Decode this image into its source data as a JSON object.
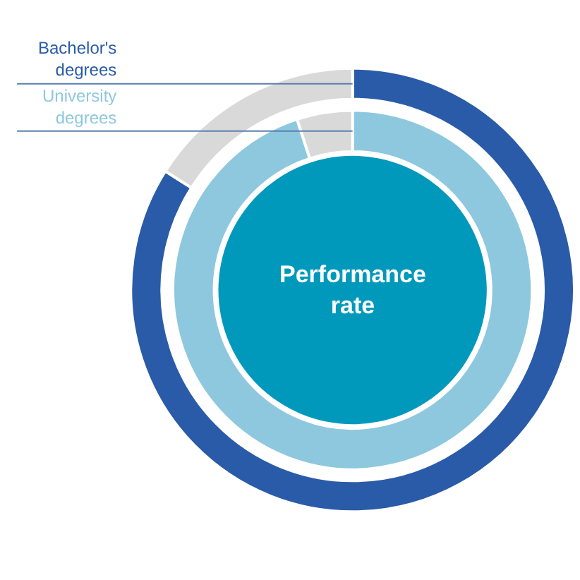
{
  "chart_data": {
    "type": "donut",
    "categories": [
      null,
      null
    ],
    "series": [
      {
        "name": "University degrees",
        "values": [
          95,
          5
        ],
        "colors": [
          "#8ec8de",
          "#d9d9d9"
        ]
      },
      {
        "name": "Bachelor's degrees",
        "values": [
          84,
          16
        ],
        "colors": [
          "#2a5ba8",
          "#d9d9d9"
        ]
      }
    ],
    "annotations": [
      "Performance rate"
    ],
    "legend": false
  }
}
